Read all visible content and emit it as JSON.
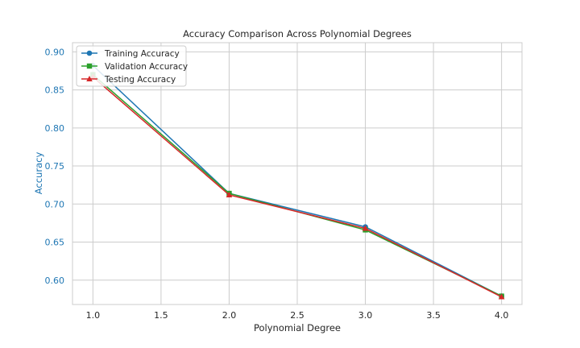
{
  "chart_data": {
    "type": "line",
    "title": "Accuracy Comparison Across Polynomial Degrees",
    "xlabel": "Polynomial Degree",
    "ylabel": "Accuracy",
    "xlim": [
      0.85,
      4.15
    ],
    "ylim": [
      0.568,
      0.912
    ],
    "xticks": [
      "1.0",
      "1.5",
      "2.0",
      "2.5",
      "3.0",
      "3.5",
      "4.0"
    ],
    "yticks": [
      "0.60",
      "0.65",
      "0.70",
      "0.75",
      "0.80",
      "0.85",
      "0.90"
    ],
    "grid": true,
    "legend_position": "top-left",
    "x": [
      1,
      2,
      3,
      4
    ],
    "series": [
      {
        "name": "Training Accuracy",
        "values": [
          0.882,
          0.714,
          0.67,
          0.579
        ],
        "color": "#1f77b4",
        "marker": "circle"
      },
      {
        "name": "Validation Accuracy",
        "values": [
          0.87,
          0.714,
          0.666,
          0.579
        ],
        "color": "#2ca02c",
        "marker": "square"
      },
      {
        "name": "Testing Accuracy",
        "values": [
          0.867,
          0.712,
          0.668,
          0.578
        ],
        "color": "#d62728",
        "marker": "triangle"
      }
    ],
    "colors": {
      "axis_text": "#1f77b4",
      "grid": "#cccccc",
      "frame": "#cccccc"
    }
  }
}
